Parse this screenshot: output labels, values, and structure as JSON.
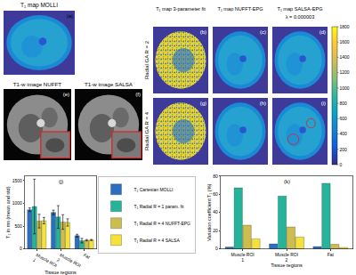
{
  "images": {
    "top_left": {
      "title": "T₁ map MOLLI",
      "label": "(a)"
    },
    "t1w": [
      {
        "title": "T1-w image NUFFT",
        "label": "(e)"
      },
      {
        "title": "T1-w image SALSA",
        "label": "(f)"
      }
    ],
    "grid": {
      "columns": [
        "T₁ map 3-parameter fit",
        "T₁ map NUFFT-EPG",
        "T₁ map SALSA-EPG"
      ],
      "subtitle": "λ = 0.000003",
      "rows": [
        {
          "title": "Radial GA R = 2",
          "labels": [
            "(b)",
            "(c)",
            "(d)"
          ]
        },
        {
          "title": "Radial GA R = 4",
          "labels": [
            "(g)",
            "(h)",
            "(i)"
          ]
        }
      ]
    },
    "colorbar": {
      "lim": [
        0,
        1800
      ],
      "ticks": [
        0,
        200,
        400,
        600,
        800,
        1000,
        1200,
        1400,
        1600,
        1800
      ]
    }
  },
  "chart_data": [
    {
      "type": "bar",
      "label": "(j)",
      "x_label": "Tissue regions",
      "y_label": "T₁ in ms (mean and std)",
      "categories": [
        "Muscle ROI 1",
        "Muscle ROI 2",
        "Fat"
      ],
      "ylim": [
        0,
        1600
      ],
      "yticks": [
        0,
        500,
        1000,
        1500
      ],
      "legend": "right",
      "series": [
        {
          "name": "T₁ Cartesian MOLLI",
          "color": "#2a6fc0",
          "values": [
            860,
            800,
            290
          ],
          "errors": [
            40,
            50,
            30
          ]
        },
        {
          "name": "T₁ Radial R = 1 param. fit",
          "color": "#25b39a",
          "values": [
            930,
            700,
            180
          ],
          "errors": [
            600,
            250,
            50
          ]
        },
        {
          "name": "T₁ Radial R = 4 NUFFT-EPG",
          "color": "#cdbd4f",
          "values": [
            610,
            590,
            190
          ],
          "errors": [
            150,
            160,
            15
          ]
        },
        {
          "name": "T₁ Radial R = 4 SALSA",
          "color": "#f5e13a",
          "values": [
            620,
            580,
            195
          ],
          "errors": [
            70,
            80,
            12
          ]
        }
      ]
    },
    {
      "type": "bar",
      "label": "(k)",
      "x_label": "Tissue regions",
      "y_label": "Variation coefficient T₁ (%)",
      "categories": [
        "Muscle ROI 1",
        "Muscle ROI 2",
        "Fat"
      ],
      "ylim": [
        0,
        80
      ],
      "yticks": [
        0,
        20,
        40,
        60,
        80
      ],
      "series": [
        {
          "name": "T₁ Cartesian MOLLI",
          "color": "#2a6fc0",
          "values": [
            2,
            5.5,
            2.5
          ]
        },
        {
          "name": "T₁ Radial R = 1 param. fit",
          "color": "#25b39a",
          "values": [
            67,
            58,
            72
          ]
        },
        {
          "name": "T₁ Radial R = 4 NUFFT-EPG",
          "color": "#cdbd4f",
          "values": [
            26,
            24,
            5
          ]
        },
        {
          "name": "T₁ Radial R = 4 SALSA",
          "color": "#f5e13a",
          "values": [
            11,
            13,
            1.5
          ]
        }
      ]
    }
  ]
}
